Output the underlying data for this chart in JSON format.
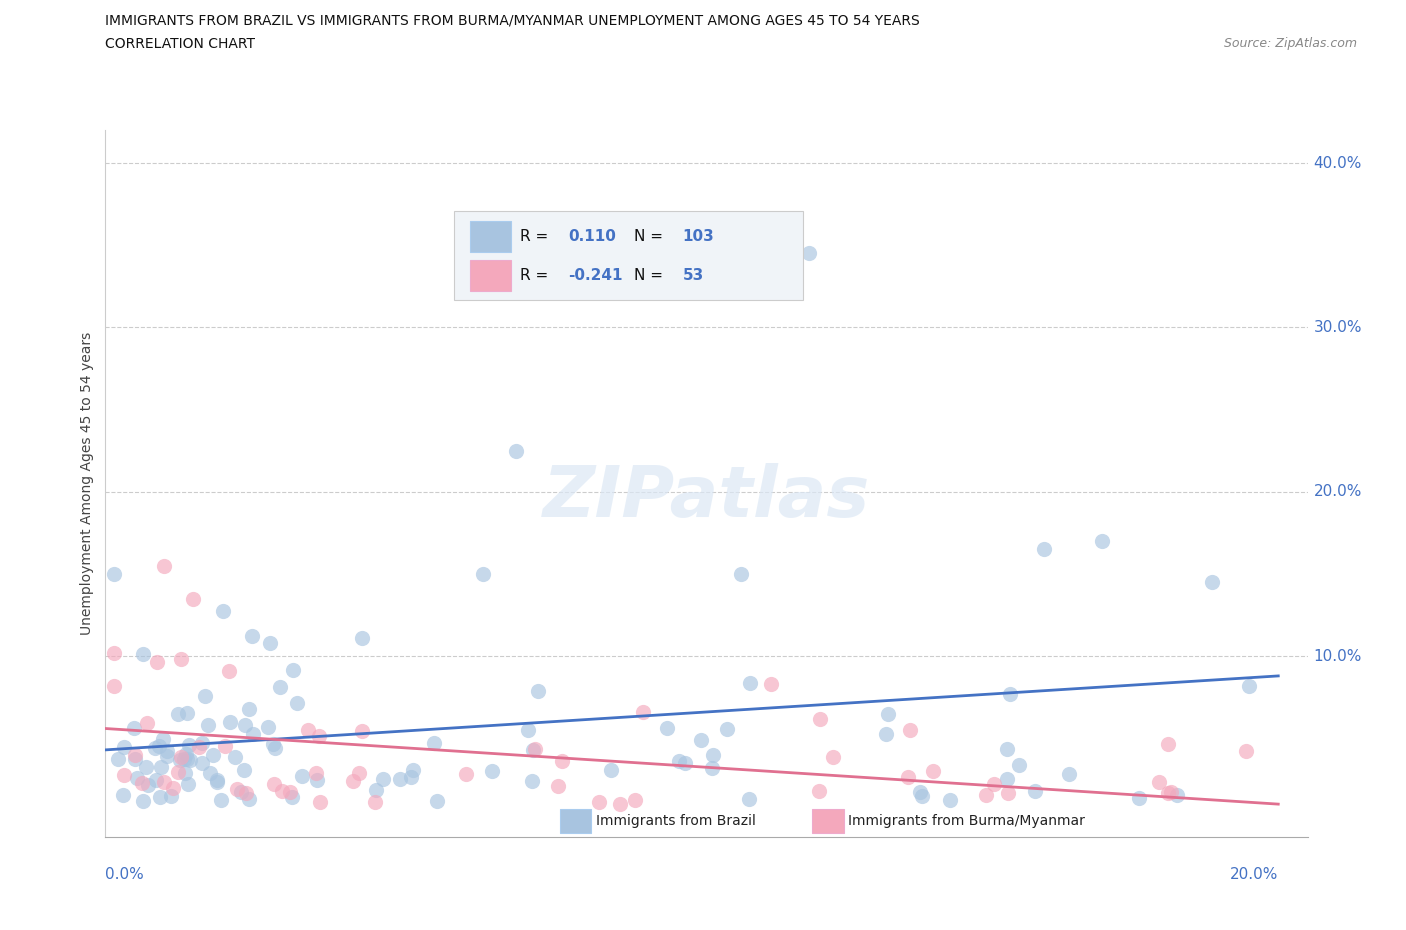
{
  "title_line1": "IMMIGRANTS FROM BRAZIL VS IMMIGRANTS FROM BURMA/MYANMAR UNEMPLOYMENT AMONG AGES 45 TO 54 YEARS",
  "title_line2": "CORRELATION CHART",
  "source_text": "Source: ZipAtlas.com",
  "ylabel": "Unemployment Among Ages 45 to 54 years",
  "xlim": [
    0.0,
    0.205
  ],
  "ylim": [
    -0.01,
    0.42
  ],
  "brazil_R": 0.11,
  "brazil_N": 103,
  "burma_R": -0.241,
  "burma_N": 53,
  "brazil_color": "#a8c4e0",
  "burma_color": "#f4a8bc",
  "brazil_line_color": "#4472c4",
  "burma_line_color": "#e07090",
  "legend_brazil_label": "Immigrants from Brazil",
  "legend_burma_label": "Immigrants from Burma/Myanmar",
  "watermark": "ZIPatlas",
  "ytick_vals": [
    0.1,
    0.2,
    0.3,
    0.4
  ],
  "ytick_labels": [
    "10.0%",
    "20.0%",
    "30.0%",
    "40.0%"
  ],
  "brazil_line_start_y": 0.043,
  "brazil_line_end_y": 0.088,
  "burma_line_start_y": 0.056,
  "burma_line_end_y": 0.01
}
